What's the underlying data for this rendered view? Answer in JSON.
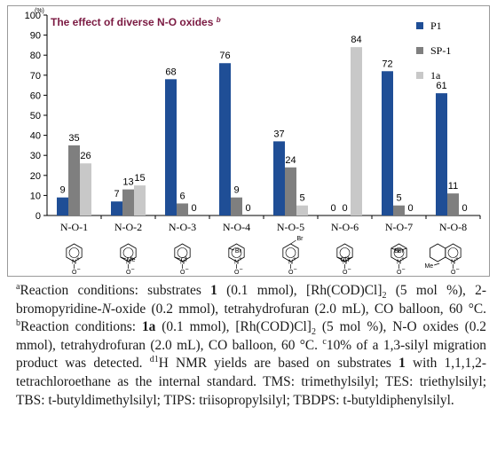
{
  "chart_data": {
    "type": "bar",
    "title": "The effect of diverse N-O oxides",
    "title_mark": "b",
    "y_unit": "(%)",
    "ylim": [
      0,
      100
    ],
    "yticks": [
      0,
      10,
      20,
      30,
      40,
      50,
      60,
      70,
      80,
      90,
      100
    ],
    "categories": [
      "N-O-1",
      "N-O-2",
      "N-O-3",
      "N-O-4",
      "N-O-5",
      "N-O-6",
      "N-O-7",
      "N-O-8"
    ],
    "series": [
      {
        "name": "P1",
        "color": "#1f4e96",
        "values": [
          9,
          7,
          68,
          76,
          37,
          0,
          72,
          61
        ]
      },
      {
        "name": "SP-1",
        "color": "#7f7f7f",
        "values": [
          35,
          13,
          6,
          9,
          24,
          0,
          5,
          11
        ]
      },
      {
        "name": "1a",
        "color": "#c8c8c8",
        "values": [
          26,
          15,
          0,
          0,
          5,
          84,
          0,
          0
        ]
      }
    ],
    "legend_position": "top-right",
    "grid": false,
    "structure_substituents": {
      "N-O-1": [],
      "N-O-2": [
        "Me"
      ],
      "N-O-3": [
        "Cl"
      ],
      "N-O-4": [
        "Br"
      ],
      "N-O-5": [
        "Br"
      ],
      "N-O-6": [
        "Cl",
        "Cl"
      ],
      "N-O-7": [
        "Br",
        "Br"
      ],
      "N-O-8": [
        "Me"
      ]
    },
    "structure_atom_labels": [
      "N",
      "+",
      "O",
      "−"
    ]
  },
  "footnote": {
    "a_mark": "a",
    "a_text_1": "Reaction conditions: substrates ",
    "a_bold_1": "1",
    "a_text_2": " (0.1 mmol), [Rh(COD)Cl]",
    "a_sub_1": "2",
    "a_text_3": " (5 mol %), 2-bromopyridine-",
    "a_italic_1": "N",
    "a_text_4": "-oxide (0.2 mmol), tetrahydrofuran (2.0 mL), CO balloon, 60 °C. ",
    "b_mark": "b",
    "b_text_1": "Reaction conditions: ",
    "b_bold_1": "1a",
    "b_text_2": " (0.1 mmol), [Rh(COD)Cl]",
    "b_sub_1": "2",
    "b_text_3": " (5 mol %), N-O oxides (0.2 mmol), tetrahydrofuran (2.0 mL), CO balloon, 60 °C. ",
    "c_mark": "c",
    "c_text": "10% of a 1,3-silyl migration product was detected. ",
    "d_mark": "d",
    "d_text_1": "1",
    "d_text_2": "H NMR yields are based on substrates ",
    "d_bold_1": "1",
    "d_text_3": " with 1,1,1,2-tetrachloroethane as the internal standard. TMS: trimethylsilyl; TES: triethylsilyl; TBS: t-butyldimethylsilyl; TIPS: triisopropylsilyl; TBDPS: t-butyldiphenylsilyl."
  }
}
